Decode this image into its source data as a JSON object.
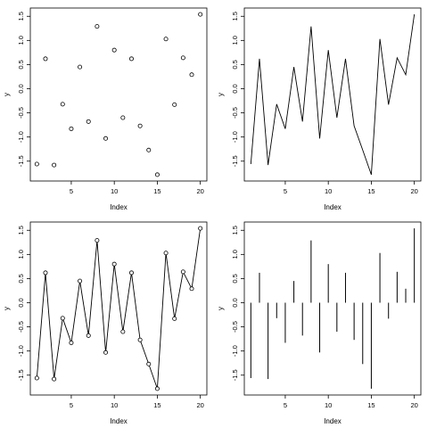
{
  "figure": {
    "layout": "2x2",
    "colors": {
      "foreground": "#000000",
      "background": "#ffffff"
    }
  },
  "chart_data": [
    {
      "type": "scatter",
      "title": "",
      "xlabel": "Index",
      "ylabel": "y",
      "marker": "open-circle",
      "x": [
        1,
        2,
        3,
        4,
        5,
        6,
        7,
        8,
        9,
        10,
        11,
        12,
        13,
        14,
        15,
        16,
        17,
        18,
        19,
        20
      ],
      "y": [
        -1.56,
        0.62,
        -1.58,
        -0.32,
        -0.83,
        0.45,
        -0.68,
        1.29,
        -1.03,
        0.8,
        -0.6,
        0.62,
        -0.77,
        -1.27,
        -1.78,
        1.03,
        -0.33,
        0.64,
        0.29,
        1.54
      ],
      "xlim": [
        0.24,
        20.76
      ],
      "ylim": [
        -1.911,
        1.671
      ],
      "xticks": [
        5,
        10,
        15,
        20
      ],
      "yticks": [
        -1.5,
        -1.0,
        -0.5,
        0.0,
        0.5,
        1.0,
        1.5
      ],
      "ytick_labels": [
        "-1.5",
        "-1.0",
        "-0.5",
        "0.0",
        "0.5",
        "1.0",
        "1.5"
      ],
      "grid": false
    },
    {
      "type": "line",
      "title": "",
      "xlabel": "Index",
      "ylabel": "y",
      "x": [
        1,
        2,
        3,
        4,
        5,
        6,
        7,
        8,
        9,
        10,
        11,
        12,
        13,
        14,
        15,
        16,
        17,
        18,
        19,
        20
      ],
      "y": [
        -1.56,
        0.62,
        -1.58,
        -0.32,
        -0.83,
        0.45,
        -0.68,
        1.29,
        -1.03,
        0.8,
        -0.6,
        0.62,
        -0.77,
        -1.27,
        -1.78,
        1.03,
        -0.33,
        0.64,
        0.29,
        1.54
      ],
      "xlim": [
        0.24,
        20.76
      ],
      "ylim": [
        -1.911,
        1.671
      ],
      "xticks": [
        5,
        10,
        15,
        20
      ],
      "yticks": [
        -1.5,
        -1.0,
        -0.5,
        0.0,
        0.5,
        1.0,
        1.5
      ],
      "ytick_labels": [
        "-1.5",
        "-1.0",
        "-0.5",
        "0.0",
        "0.5",
        "1.0",
        "1.5"
      ],
      "grid": false
    },
    {
      "type": "line",
      "title": "",
      "xlabel": "Index",
      "ylabel": "y",
      "marker": "open-circle",
      "x": [
        1,
        2,
        3,
        4,
        5,
        6,
        7,
        8,
        9,
        10,
        11,
        12,
        13,
        14,
        15,
        16,
        17,
        18,
        19,
        20
      ],
      "y": [
        -1.56,
        0.62,
        -1.58,
        -0.32,
        -0.83,
        0.45,
        -0.68,
        1.29,
        -1.03,
        0.8,
        -0.6,
        0.62,
        -0.77,
        -1.27,
        -1.78,
        1.03,
        -0.33,
        0.64,
        0.29,
        1.54
      ],
      "xlim": [
        0.24,
        20.76
      ],
      "ylim": [
        -1.911,
        1.671
      ],
      "xticks": [
        5,
        10,
        15,
        20
      ],
      "yticks": [
        -1.5,
        -1.0,
        -0.5,
        0.0,
        0.5,
        1.0,
        1.5
      ],
      "ytick_labels": [
        "-1.5",
        "-1.0",
        "-0.5",
        "0.0",
        "0.5",
        "1.0",
        "1.5"
      ],
      "grid": false
    },
    {
      "type": "bar",
      "title": "",
      "xlabel": "Index",
      "ylabel": "y",
      "style": "vertical-lines",
      "x": [
        1,
        2,
        3,
        4,
        5,
        6,
        7,
        8,
        9,
        10,
        11,
        12,
        13,
        14,
        15,
        16,
        17,
        18,
        19,
        20
      ],
      "y": [
        -1.56,
        0.62,
        -1.58,
        -0.32,
        -0.83,
        0.45,
        -0.68,
        1.29,
        -1.03,
        0.8,
        -0.6,
        0.62,
        -0.77,
        -1.27,
        -1.78,
        1.03,
        -0.33,
        0.64,
        0.29,
        1.54
      ],
      "xlim": [
        0.24,
        20.76
      ],
      "ylim": [
        -1.911,
        1.671
      ],
      "xticks": [
        5,
        10,
        15,
        20
      ],
      "yticks": [
        -1.5,
        -1.0,
        -0.5,
        0.0,
        0.5,
        1.0,
        1.5
      ],
      "ytick_labels": [
        "-1.5",
        "-1.0",
        "-0.5",
        "0.0",
        "0.5",
        "1.0",
        "1.5"
      ],
      "grid": false
    }
  ]
}
